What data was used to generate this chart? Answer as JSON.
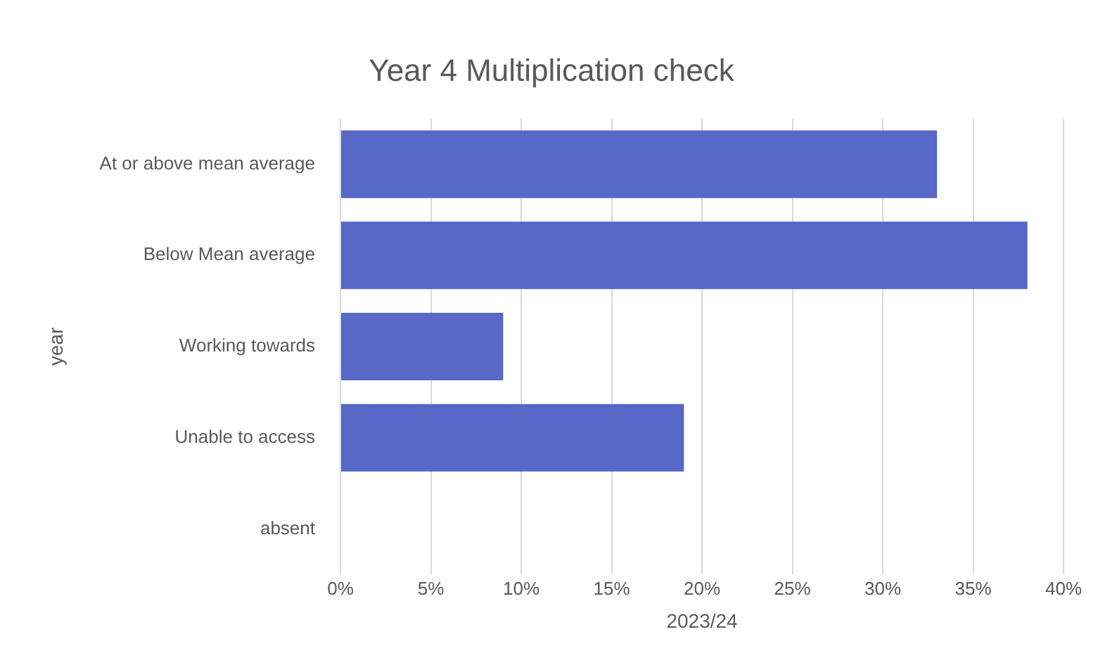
{
  "chart_data": {
    "type": "bar",
    "orientation": "horizontal",
    "title": "Year 4 Multiplication check",
    "xlabel": "2023/24",
    "ylabel": "year",
    "categories": [
      "At or above mean average",
      "Below Mean average",
      "Working towards",
      "Unable to access",
      "absent"
    ],
    "values": [
      33,
      38,
      9,
      19,
      0
    ],
    "color": "#5668c8",
    "xlim": [
      0,
      40
    ],
    "xticks": [
      {
        "value": 0,
        "label": "0%"
      },
      {
        "value": 5,
        "label": "5%"
      },
      {
        "value": 10,
        "label": "10%"
      },
      {
        "value": 15,
        "label": "15%"
      },
      {
        "value": 20,
        "label": "20%"
      },
      {
        "value": 25,
        "label": "25%"
      },
      {
        "value": 30,
        "label": "30%"
      },
      {
        "value": 35,
        "label": "35%"
      },
      {
        "value": 40,
        "label": "40%"
      }
    ],
    "grid": "x",
    "legend": false
  }
}
